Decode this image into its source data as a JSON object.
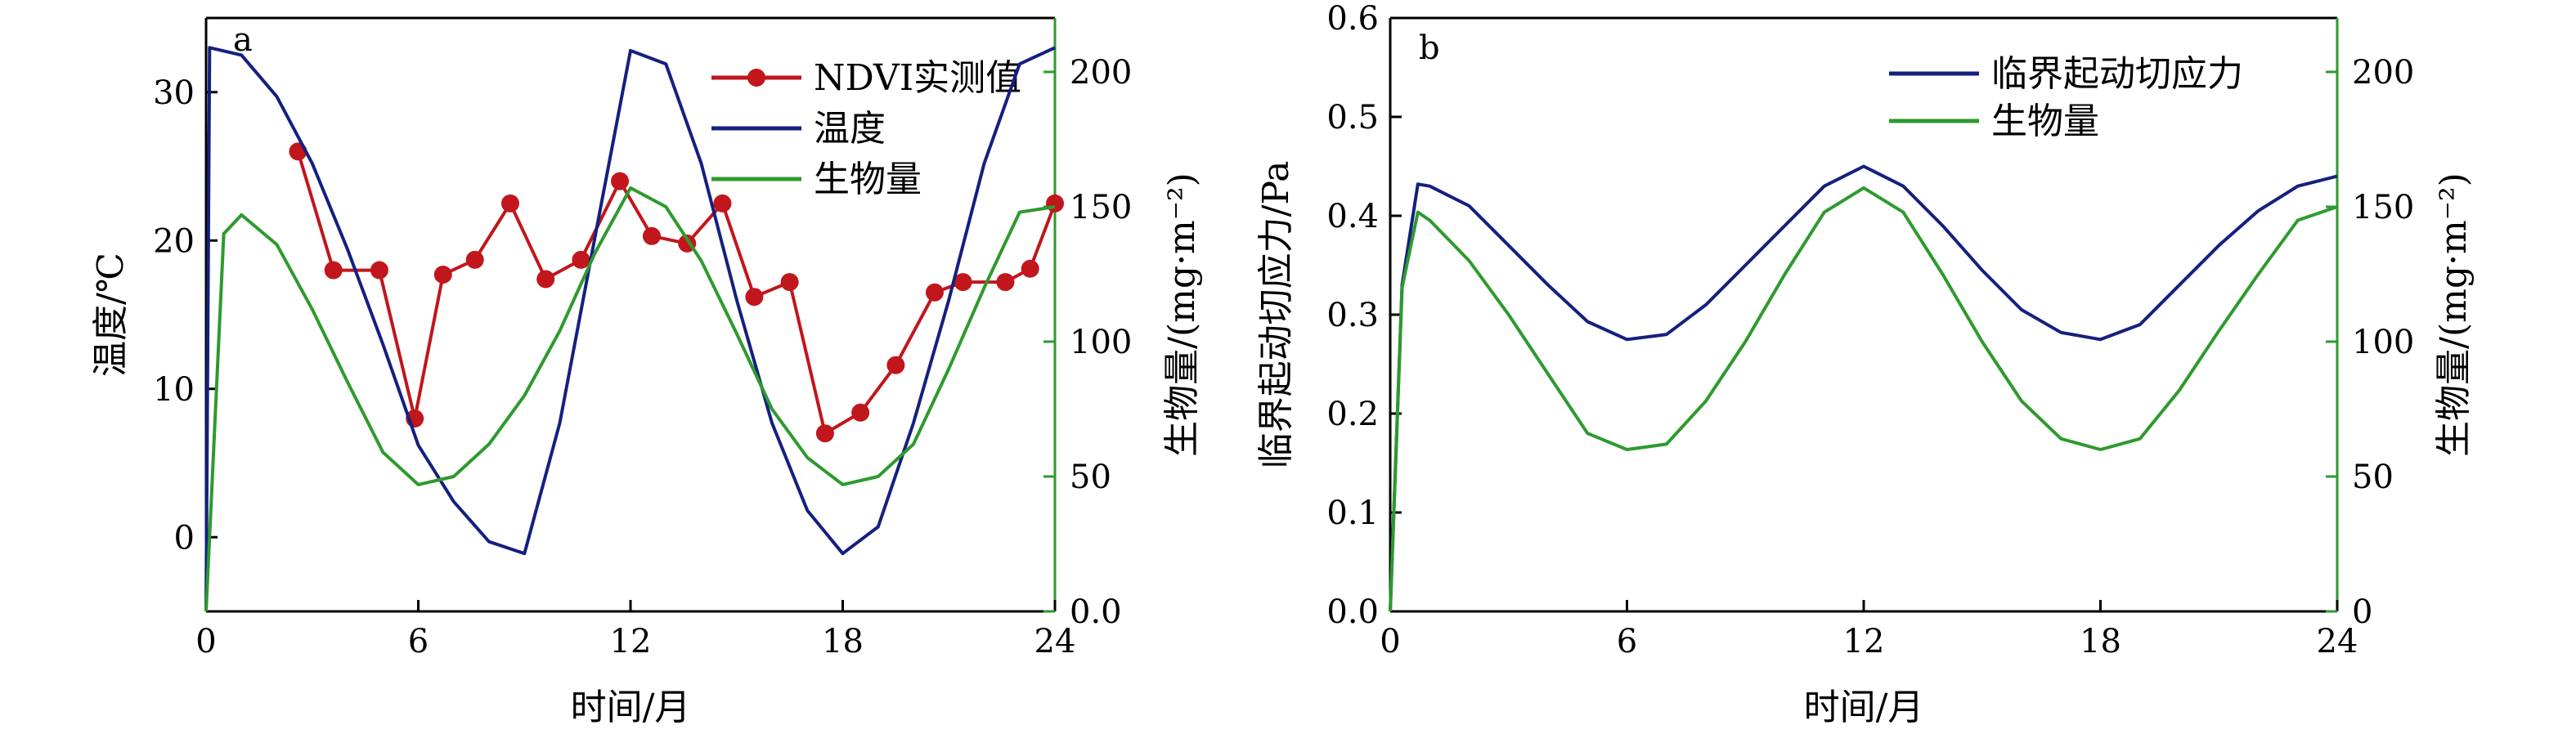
{
  "colors": {
    "temperature": "#14207f",
    "biomass": "#2e9a2e",
    "ndvi": "#c1161c",
    "stress": "#14207f",
    "right_axis": "#2e9a2e",
    "axis": "#000000"
  },
  "chart_data": [
    {
      "type": "line",
      "panel": "a",
      "xlabel": "时间/月",
      "ylabel": "温度/℃",
      "y2label": "生物量/(mg·m⁻²)",
      "xlim": [
        0,
        24
      ],
      "ylim": [
        -5,
        35
      ],
      "y2lim": [
        0,
        220
      ],
      "xticks": [
        "0",
        "6",
        "12",
        "18",
        "24"
      ],
      "yticks": [
        "0",
        "10",
        "20",
        "30"
      ],
      "y2ticks": [
        "0.0",
        "50",
        "100",
        "150",
        "200"
      ],
      "legend_position": "top-right",
      "series": [
        {
          "name": "NDVI实测值",
          "axis": "left",
          "marker": "circle",
          "x": [
            2.6,
            3.6,
            4.9,
            5.9,
            6.7,
            7.6,
            8.6,
            9.6,
            10.6,
            11.7,
            12.6,
            13.6,
            14.6,
            15.5,
            16.5,
            17.5,
            18.5,
            19.5,
            20.6,
            21.4,
            22.6,
            23.3,
            24.0
          ],
          "y": [
            26,
            18,
            18,
            8,
            17.7,
            18.7,
            22.5,
            17.4,
            18.7,
            24,
            20.3,
            19.8,
            22.5,
            16.2,
            17.2,
            7,
            8.4,
            11.6,
            16.5,
            17.2,
            17.2,
            18.1,
            22.5
          ]
        },
        {
          "name": "温度",
          "axis": "left",
          "x": [
            0,
            0.1,
            1,
            2,
            3,
            4,
            5,
            6,
            7,
            8,
            9,
            10,
            11,
            12,
            13,
            14,
            15,
            16,
            17,
            18,
            19,
            20,
            21,
            22,
            23,
            24
          ],
          "y": [
            -5,
            33,
            32.5,
            29.7,
            25.2,
            19.4,
            13,
            6.2,
            2.4,
            -0.3,
            -1.1,
            7.7,
            20.3,
            32.8,
            31.9,
            25.2,
            16,
            7.7,
            1.8,
            -1.1,
            0.7,
            7.7,
            16,
            25.2,
            31.9,
            33
          ]
        },
        {
          "name": "生物量",
          "axis": "right",
          "x": [
            0,
            0.5,
            1,
            2,
            3,
            4,
            5,
            6,
            7,
            8,
            9,
            10,
            11,
            12,
            13,
            14,
            15,
            16,
            17,
            18,
            19,
            20,
            21,
            22,
            23,
            24
          ],
          "y": [
            0,
            140,
            147,
            136,
            112,
            85,
            59,
            47,
            50,
            62,
            80,
            104,
            133,
            157,
            150,
            130,
            103,
            75,
            57,
            47,
            50,
            62,
            90,
            120,
            148,
            150
          ]
        }
      ]
    },
    {
      "type": "line",
      "panel": "b",
      "xlabel": "时间/月",
      "ylabel": "临界起动切应力/Pa",
      "y2label": "生物量/(mg·m⁻²)",
      "xlim": [
        0,
        24
      ],
      "ylim": [
        0,
        0.6
      ],
      "y2lim": [
        0,
        220
      ],
      "xticks": [
        "0",
        "6",
        "12",
        "18",
        "24"
      ],
      "yticks": [
        "0.0",
        "0.1",
        "0.2",
        "0.3",
        "0.4",
        "0.5",
        "0.6"
      ],
      "y2ticks": [
        "0",
        "50",
        "100",
        "150",
        "200"
      ],
      "legend_position": "top-right",
      "series": [
        {
          "name": "临界起动切应力",
          "axis": "left",
          "x": [
            0,
            0.3,
            0.7,
            1,
            2,
            3,
            4,
            5,
            6,
            7,
            8,
            9,
            10,
            11,
            12,
            13,
            14,
            15,
            16,
            17,
            18,
            19,
            20,
            21,
            22,
            23,
            24
          ],
          "y": [
            0,
            0.33,
            0.432,
            0.43,
            0.41,
            0.37,
            0.33,
            0.293,
            0.275,
            0.28,
            0.31,
            0.35,
            0.39,
            0.43,
            0.45,
            0.43,
            0.39,
            0.345,
            0.305,
            0.282,
            0.275,
            0.29,
            0.33,
            0.37,
            0.405,
            0.43,
            0.44
          ]
        },
        {
          "name": "生物量",
          "axis": "right",
          "x": [
            0,
            0.3,
            0.7,
            1,
            2,
            3,
            4,
            5,
            6,
            7,
            8,
            9,
            10,
            11,
            12,
            13,
            14,
            15,
            16,
            17,
            18,
            19,
            20,
            21,
            22,
            23,
            24
          ],
          "y": [
            0,
            120,
            148,
            145,
            130,
            110,
            88,
            66,
            60,
            62,
            78,
            100,
            125,
            148,
            157,
            148,
            125,
            100,
            78,
            64,
            60,
            64,
            82,
            104,
            125,
            145,
            150
          ]
        }
      ]
    }
  ]
}
